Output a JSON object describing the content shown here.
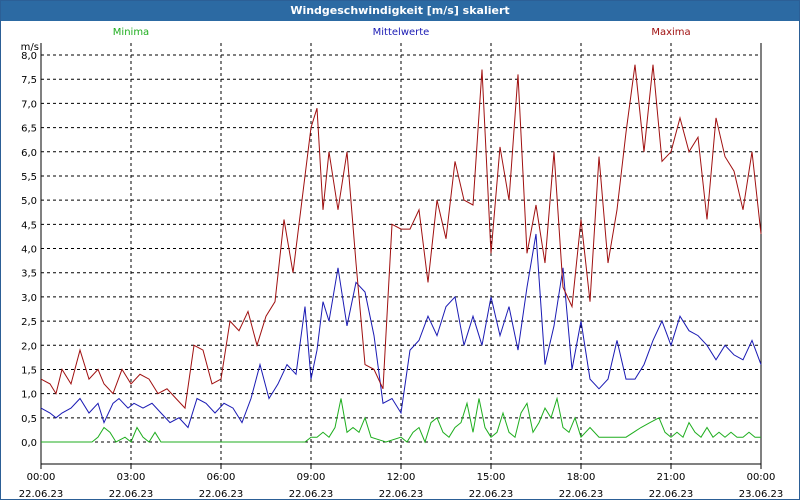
{
  "window_title": "Windgeschwindigkeit [m/s] skaliert",
  "chart_data": {
    "type": "line",
    "ylabel": "m/s",
    "ylim": [
      -0.4,
      8.2
    ],
    "yticks": [
      "8,0",
      "7,5",
      "7,0",
      "6,5",
      "6,0",
      "5,5",
      "5,0",
      "4,5",
      "4,0",
      "3,5",
      "3,0",
      "2,5",
      "2,0",
      "1,5",
      "1,0",
      "0,5",
      "0,0"
    ],
    "ytick_values": [
      8.0,
      7.5,
      7.0,
      6.5,
      6.0,
      5.5,
      5.0,
      4.5,
      4.0,
      3.5,
      3.0,
      2.5,
      2.0,
      1.5,
      1.0,
      0.5,
      0.0
    ],
    "xlim_hours": [
      0,
      24
    ],
    "xtick_hours": [
      0,
      3,
      6,
      9,
      12,
      15,
      18,
      21,
      24
    ],
    "xtick_times": [
      "00:00",
      "03:00",
      "06:00",
      "09:00",
      "12:00",
      "15:00",
      "18:00",
      "21:00",
      "00:00"
    ],
    "xtick_dates": [
      "22.06.23",
      "22.06.23",
      "22.06.23",
      "22.06.23",
      "22.06.23",
      "22.06.23",
      "22.06.23",
      "22.06.23",
      "23.06.23"
    ],
    "grid": true,
    "series": [
      {
        "name": "Minima",
        "color": "#1fae1f",
        "label_hour": 3,
        "x": [
          0,
          0.5,
          1,
          1.5,
          1.7,
          1.9,
          2.1,
          2.3,
          2.5,
          2.8,
          3.0,
          3.2,
          3.4,
          3.6,
          3.8,
          4.0,
          4.5,
          5,
          5.5,
          6,
          6.5,
          7,
          7.5,
          8,
          8.5,
          8.8,
          9,
          9.2,
          9.4,
          9.6,
          9.8,
          10,
          10.2,
          10.4,
          10.6,
          10.8,
          11,
          11.5,
          12,
          12.2,
          12.4,
          12.6,
          12.8,
          13,
          13.2,
          13.4,
          13.6,
          13.8,
          14,
          14.2,
          14.4,
          14.6,
          14.8,
          15,
          15.2,
          15.4,
          15.6,
          15.8,
          16,
          16.2,
          16.4,
          16.6,
          16.8,
          17,
          17.2,
          17.4,
          17.6,
          17.8,
          18,
          18.3,
          18.6,
          19,
          19.5,
          20,
          20.3,
          20.6,
          20.8,
          21,
          21.2,
          21.4,
          21.6,
          21.8,
          22,
          22.2,
          22.4,
          22.6,
          22.8,
          23,
          23.2,
          23.4,
          23.6,
          23.8,
          24
        ],
        "y": [
          0,
          0,
          0,
          0,
          0,
          0.1,
          0.3,
          0.2,
          0,
          0.1,
          0,
          0.3,
          0.1,
          0,
          0.2,
          0,
          0,
          0,
          0,
          0,
          0,
          0,
          0,
          0,
          0,
          0,
          0.1,
          0.1,
          0.2,
          0.1,
          0.3,
          0.9,
          0.2,
          0.3,
          0.2,
          0.5,
          0.1,
          0,
          0.1,
          0,
          0.2,
          0.3,
          0,
          0.4,
          0.5,
          0.2,
          0.1,
          0.3,
          0.4,
          0.8,
          0.2,
          0.9,
          0.3,
          0.1,
          0.2,
          0.6,
          0.2,
          0.1,
          0.6,
          0.8,
          0.2,
          0.4,
          0.7,
          0.5,
          0.9,
          0.3,
          0.2,
          0.5,
          0.1,
          0.3,
          0.1,
          0.1,
          0.1,
          0.3,
          0.4,
          0.5,
          0.2,
          0.1,
          0.2,
          0.1,
          0.4,
          0.2,
          0.1,
          0.3,
          0.1,
          0.2,
          0.1,
          0.2,
          0.1,
          0.1,
          0.2,
          0.1,
          0.1
        ],
        "line": [
          0,
          1,
          2,
          3,
          4,
          5,
          6,
          7,
          8,
          9,
          10,
          11,
          12,
          13,
          14,
          15,
          16,
          17,
          18,
          19,
          20,
          21,
          22,
          23,
          24,
          25,
          26,
          27,
          28,
          29,
          30,
          31,
          32,
          33,
          34,
          35,
          36,
          37,
          38,
          39,
          40,
          41,
          42,
          43,
          44,
          45,
          46,
          47,
          48,
          49,
          50,
          51,
          52,
          53,
          54,
          55,
          56,
          57,
          58,
          59,
          60,
          61,
          62,
          63,
          64,
          65,
          66,
          67,
          68,
          69,
          70,
          71,
          72,
          73,
          74,
          75,
          76,
          77,
          78,
          79,
          80,
          81,
          82,
          83,
          84,
          85,
          86,
          87,
          88,
          89,
          90,
          91,
          92
        ]
      },
      {
        "name": "Mittelwerte",
        "color": "#1a1ab4",
        "label_hour": 12,
        "x": [
          0,
          0.3,
          0.5,
          0.7,
          1,
          1.3,
          1.6,
          1.9,
          2.1,
          2.4,
          2.6,
          2.9,
          3.1,
          3.4,
          3.7,
          4.0,
          4.3,
          4.6,
          4.9,
          5.2,
          5.5,
          5.8,
          6.1,
          6.4,
          6.7,
          7.0,
          7.3,
          7.6,
          7.9,
          8.2,
          8.5,
          8.8,
          9.0,
          9.2,
          9.4,
          9.6,
          9.9,
          10.2,
          10.5,
          10.8,
          11.1,
          11.4,
          11.7,
          12.0,
          12.3,
          12.6,
          12.9,
          13.2,
          13.5,
          13.8,
          14.1,
          14.4,
          14.7,
          15.0,
          15.3,
          15.6,
          15.9,
          16.2,
          16.5,
          16.8,
          17.1,
          17.4,
          17.7,
          18.0,
          18.3,
          18.6,
          18.9,
          19.2,
          19.5,
          19.8,
          20.1,
          20.4,
          20.7,
          21.0,
          21.3,
          21.6,
          21.9,
          22.2,
          22.5,
          22.8,
          23.1,
          23.4,
          23.7,
          24.0
        ],
        "y": [
          0.7,
          0.6,
          0.5,
          0.6,
          0.7,
          0.9,
          0.6,
          0.8,
          0.4,
          0.8,
          0.9,
          0.7,
          0.8,
          0.7,
          0.8,
          0.6,
          0.4,
          0.5,
          0.3,
          0.9,
          0.8,
          0.6,
          0.8,
          0.7,
          0.4,
          0.9,
          1.6,
          0.9,
          1.2,
          1.6,
          1.4,
          2.8,
          1.3,
          1.9,
          2.9,
          2.5,
          3.6,
          2.4,
          3.3,
          3.1,
          2.2,
          0.8,
          0.9,
          0.6,
          1.9,
          2.1,
          2.6,
          2.2,
          2.8,
          3.0,
          2.0,
          2.6,
          2.0,
          3.0,
          2.2,
          2.8,
          1.9,
          3.2,
          4.3,
          1.6,
          2.4,
          3.6,
          1.5,
          2.5,
          1.3,
          1.1,
          1.3,
          2.1,
          1.3,
          1.3,
          1.6,
          2.1,
          2.5,
          2.0,
          2.6,
          2.3,
          2.2,
          2.0,
          1.7,
          2.0,
          1.8,
          1.7,
          2.1,
          1.6
        ]
      },
      {
        "name": "Maxima",
        "color": "#a01010",
        "label_hour": 21,
        "x": [
          0,
          0.3,
          0.5,
          0.7,
          1,
          1.3,
          1.6,
          1.9,
          2.1,
          2.4,
          2.7,
          3.0,
          3.3,
          3.6,
          3.9,
          4.2,
          4.5,
          4.8,
          5.1,
          5.4,
          5.7,
          6.0,
          6.3,
          6.6,
          6.9,
          7.2,
          7.5,
          7.8,
          8.1,
          8.4,
          8.7,
          9.0,
          9.2,
          9.4,
          9.6,
          9.9,
          10.2,
          10.5,
          10.8,
          11.1,
          11.4,
          11.7,
          12.0,
          12.3,
          12.6,
          12.9,
          13.2,
          13.5,
          13.8,
          14.1,
          14.4,
          14.7,
          15.0,
          15.3,
          15.6,
          15.9,
          16.2,
          16.5,
          16.8,
          17.1,
          17.4,
          17.7,
          18.0,
          18.3,
          18.6,
          18.9,
          19.2,
          19.5,
          19.8,
          20.1,
          20.4,
          20.7,
          21.0,
          21.3,
          21.6,
          21.9,
          22.2,
          22.5,
          22.8,
          23.1,
          23.4,
          23.7,
          24.0
        ],
        "y": [
          1.3,
          1.2,
          1.0,
          1.5,
          1.2,
          1.9,
          1.3,
          1.5,
          1.2,
          1.0,
          1.5,
          1.2,
          1.4,
          1.3,
          1.0,
          1.1,
          0.9,
          0.7,
          2.0,
          1.9,
          1.2,
          1.3,
          2.5,
          2.3,
          2.7,
          2.0,
          2.6,
          2.9,
          4.6,
          3.5,
          5.0,
          6.5,
          6.9,
          4.8,
          6.0,
          4.8,
          6.0,
          3.7,
          1.6,
          1.5,
          1.1,
          4.5,
          4.4,
          4.4,
          4.8,
          3.3,
          5.0,
          4.2,
          5.8,
          5.0,
          4.9,
          7.7,
          3.9,
          6.1,
          5.0,
          7.6,
          3.9,
          4.9,
          3.7,
          6.0,
          3.2,
          2.8,
          4.6,
          2.9,
          5.9,
          3.7,
          4.8,
          6.4,
          7.8,
          6.0,
          7.8,
          5.8,
          6.0,
          6.7,
          6.0,
          6.3,
          4.6,
          6.7,
          5.9,
          5.6,
          4.8,
          6.0,
          4.3
        ]
      }
    ]
  }
}
